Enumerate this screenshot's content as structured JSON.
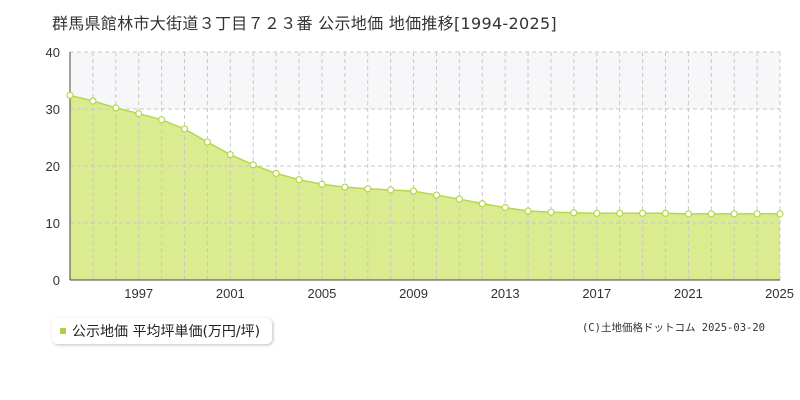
{
  "title": "群馬県館林市大街道３丁目７２３番 公示地価 地価推移[1994-2025]",
  "legend_label": "公示地価 平均坪単価(万円/坪)",
  "copyright": "(C)土地価格ドットコム 2025-03-20",
  "colors": {
    "area_fill": "#dbeb8f",
    "line": "#b5d84a",
    "marker_fill": "#ffffff",
    "marker_stroke": "#b5d84a",
    "band": "#f7f7f9",
    "grid": "#c8c8c8",
    "axis": "#444444",
    "legend_swatch": "#a9d141"
  },
  "chart_data": {
    "type": "area",
    "title": "群馬県館林市大街道３丁目７２３番 公示地価 地価推移[1994-2025]",
    "xlabel": "",
    "ylabel": "",
    "xlim": [
      1994,
      2025
    ],
    "ylim": [
      0,
      40
    ],
    "y_ticks": [
      0,
      10,
      20,
      30,
      40
    ],
    "x_tick_labels": [
      "1997",
      "2001",
      "2005",
      "2009",
      "2013",
      "2017",
      "2021",
      "2025"
    ],
    "x_tick_values": [
      1997,
      2001,
      2005,
      2009,
      2013,
      2017,
      2021,
      2025
    ],
    "grid": true,
    "legend_position": "bottom-left",
    "series": [
      {
        "name": "公示地価 平均坪単価(万円/坪)",
        "x": [
          1994,
          1995,
          1996,
          1997,
          1998,
          1999,
          2000,
          2001,
          2002,
          2003,
          2004,
          2005,
          2006,
          2007,
          2008,
          2009,
          2010,
          2011,
          2012,
          2013,
          2014,
          2015,
          2016,
          2017,
          2018,
          2019,
          2020,
          2021,
          2022,
          2023,
          2024,
          2025
        ],
        "values": [
          32.4,
          31.4,
          30.2,
          29.2,
          28.1,
          26.5,
          24.2,
          22.0,
          20.2,
          18.7,
          17.6,
          16.8,
          16.3,
          16.0,
          15.8,
          15.6,
          14.9,
          14.2,
          13.4,
          12.7,
          12.1,
          11.9,
          11.8,
          11.7,
          11.7,
          11.7,
          11.7,
          11.6,
          11.6,
          11.6,
          11.6,
          11.6
        ]
      }
    ]
  }
}
